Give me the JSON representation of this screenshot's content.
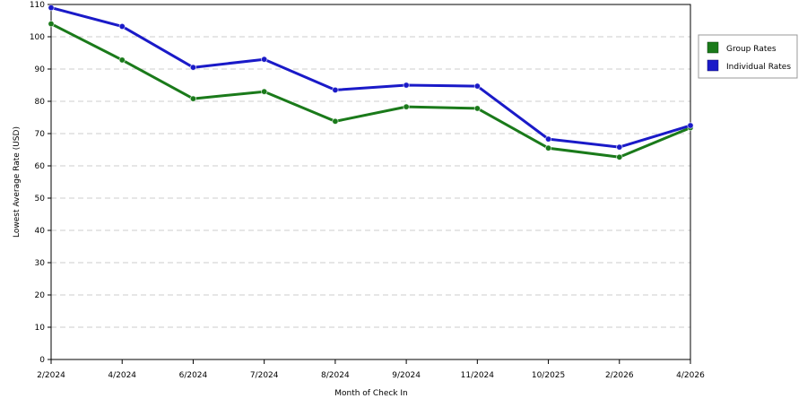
{
  "chart_data": {
    "type": "line",
    "xlabel": "Month of Check In",
    "ylabel": "Lowest Average Rate (USD)",
    "categories": [
      "2/2024",
      "4/2024",
      "6/2024",
      "7/2024",
      "8/2024",
      "9/2024",
      "11/2024",
      "10/2025",
      "2/2026",
      "4/2026"
    ],
    "ylim": [
      0,
      110
    ],
    "yticks": [
      "0",
      "10",
      "20",
      "30",
      "40",
      "50",
      "60",
      "70",
      "80",
      "90",
      "100",
      "110"
    ],
    "grid": true,
    "legend_position": "right",
    "series": [
      {
        "name": "Group Rates",
        "color": "#1a7a1a",
        "values": [
          104,
          92.8,
          80.8,
          83,
          73.8,
          78.3,
          77.8,
          65.5,
          62.7,
          71.8
        ]
      },
      {
        "name": "Individual Rates",
        "color": "#1a1ac8",
        "values": [
          109,
          103.2,
          90.5,
          93,
          83.5,
          85,
          84.7,
          68.3,
          65.8,
          72.5
        ]
      }
    ]
  }
}
